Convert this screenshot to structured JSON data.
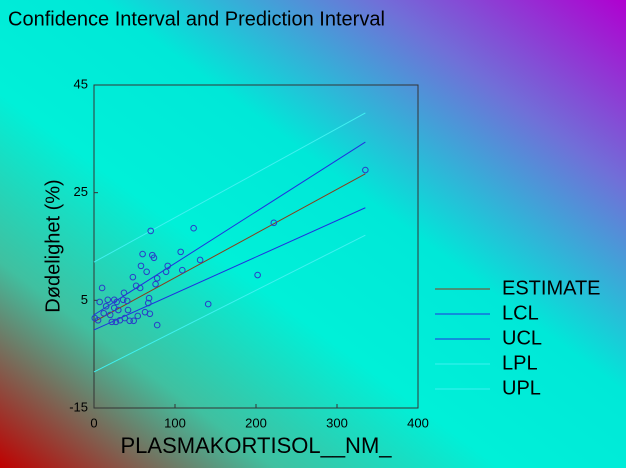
{
  "chart_data": {
    "type": "scatter",
    "title": "Confidence Interval and Prediction Interval",
    "x_label": "PLASMAKORTISOL__NM_",
    "y_label": "Dødelighet (%)",
    "xlim": [
      0,
      400
    ],
    "xticks": [
      0,
      100,
      200,
      300,
      400
    ],
    "ylim": [
      -15,
      45
    ],
    "yticks": [
      -15,
      5,
      25,
      45
    ],
    "points": {
      "color": "#2a3cc8",
      "x": [
        335,
        222,
        202,
        141,
        123,
        131,
        107,
        109,
        70,
        72,
        74,
        60,
        58,
        65,
        78,
        76,
        91,
        89,
        57,
        48,
        52,
        37,
        36,
        41,
        28,
        25,
        17,
        10,
        7,
        12,
        5,
        1,
        20,
        22,
        27,
        32,
        38,
        44,
        49,
        54,
        63,
        67,
        68,
        69,
        78,
        25,
        30,
        15,
        42
      ],
      "y": [
        29.2,
        19.4,
        9.7,
        4.3,
        18.4,
        12.5,
        14.0,
        10.6,
        17.9,
        13.4,
        12.9,
        13.6,
        11.4,
        10.3,
        9.1,
        8.0,
        11.4,
        10.3,
        7.3,
        9.3,
        7.7,
        6.4,
        5.1,
        4.9,
        4.7,
        5.1,
        5.1,
        7.3,
        4.7,
        2.6,
        1.3,
        1.7,
        2.3,
        1.0,
        1.0,
        1.3,
        1.7,
        1.2,
        1.2,
        2.1,
        2.8,
        4.5,
        5.4,
        2.5,
        0.4,
        3.6,
        3.2,
        3.9,
        3.2
      ]
    },
    "lines": [
      {
        "name": "ESTIMATE",
        "color": "#8b3a1a",
        "x": [
          0,
          335
        ],
        "values": [
          1.0,
          28.5
        ]
      },
      {
        "name": "LCL",
        "color": "#2030e0",
        "x": [
          0,
          335
        ],
        "values": [
          -0.5,
          22.2
        ]
      },
      {
        "name": "UCL",
        "color": "#2030e0",
        "x": [
          0,
          335
        ],
        "values": [
          2.3,
          34.4
        ]
      },
      {
        "name": "LPL",
        "color": "#40f0f0",
        "x": [
          0,
          335
        ],
        "values": [
          -8.3,
          17.1
        ]
      },
      {
        "name": "UPL",
        "color": "#40f0f0",
        "x": [
          0,
          335
        ],
        "values": [
          12.1,
          39.8
        ]
      }
    ]
  }
}
